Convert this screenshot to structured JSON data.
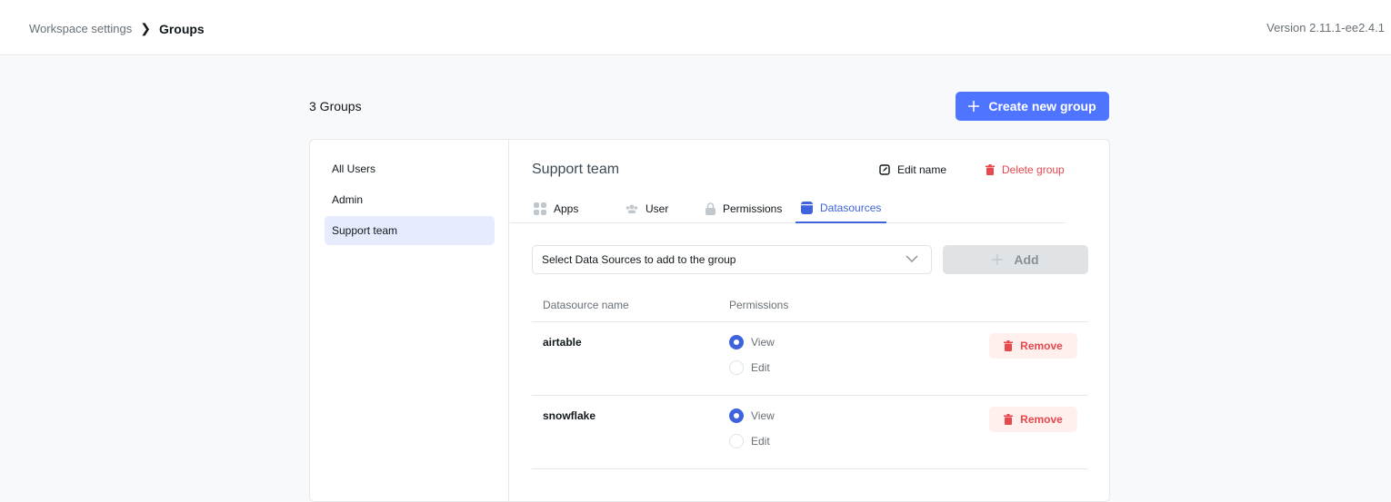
{
  "header": {
    "breadcrumb_parent": "Workspace settings",
    "breadcrumb_current": "Groups",
    "version": "Version 2.11.1-ee2.4.1"
  },
  "toolbar": {
    "group_count": "3 Groups",
    "create_label": "Create new group"
  },
  "sidebar": {
    "items": [
      {
        "label": "All Users"
      },
      {
        "label": "Admin"
      },
      {
        "label": "Support team",
        "active": true
      }
    ]
  },
  "group": {
    "title": "Support team",
    "edit_label": "Edit name",
    "delete_label": "Delete group"
  },
  "tabs": [
    {
      "label": "Apps",
      "icon": "apps-icon"
    },
    {
      "label": "User",
      "icon": "users-icon"
    },
    {
      "label": "Permissions",
      "icon": "lock-icon"
    },
    {
      "label": "Datasources",
      "icon": "database-icon",
      "active": true
    }
  ],
  "datasources": {
    "select_placeholder": "Select Data Sources to add to the group",
    "add_label": "Add",
    "columns": [
      "Datasource name",
      "Permissions"
    ],
    "rows": [
      {
        "name": "airtable",
        "view": "View",
        "edit": "Edit",
        "selected": "View",
        "remove": "Remove"
      },
      {
        "name": "snowflake",
        "view": "View",
        "edit": "Edit",
        "selected": "View",
        "remove": "Remove"
      }
    ]
  },
  "colors": {
    "accent": "#4f74ff",
    "tab_active": "#3e63dd",
    "danger": "#e5484d"
  }
}
